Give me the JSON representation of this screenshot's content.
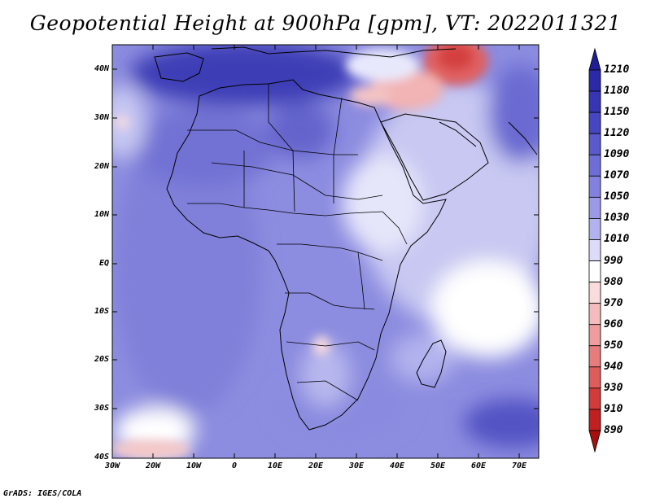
{
  "title": "Geopotential Height at 900hPa [gpm], VT: 2022011321",
  "credit": "GrADS: IGES/COLA",
  "map": {
    "lat_labels": [
      "40N",
      "30N",
      "20N",
      "10N",
      "EQ",
      "10S",
      "20S",
      "30S",
      "40S"
    ],
    "lon_labels": [
      "30W",
      "20W",
      "10W",
      "0",
      "10E",
      "20E",
      "30E",
      "40E",
      "50E",
      "60E",
      "70E"
    ]
  },
  "colorbar": {
    "levels": [
      "1210",
      "1180",
      "1150",
      "1120",
      "1090",
      "1070",
      "1050",
      "1030",
      "1010",
      "990",
      "980",
      "970",
      "960",
      "950",
      "940",
      "930",
      "910",
      "890"
    ],
    "colors": [
      "#1e1e96",
      "#2a2aa8",
      "#3636b4",
      "#4646c2",
      "#5a5acc",
      "#6e6ed6",
      "#8282de",
      "#9a9ae6",
      "#b2b2ee",
      "#dcdcf8",
      "#ffffff",
      "#fadcdc",
      "#f4bcbc",
      "#ee9c9c",
      "#e67c7c",
      "#de5c5c",
      "#d03c3c",
      "#c02020",
      "#a81010"
    ]
  }
}
